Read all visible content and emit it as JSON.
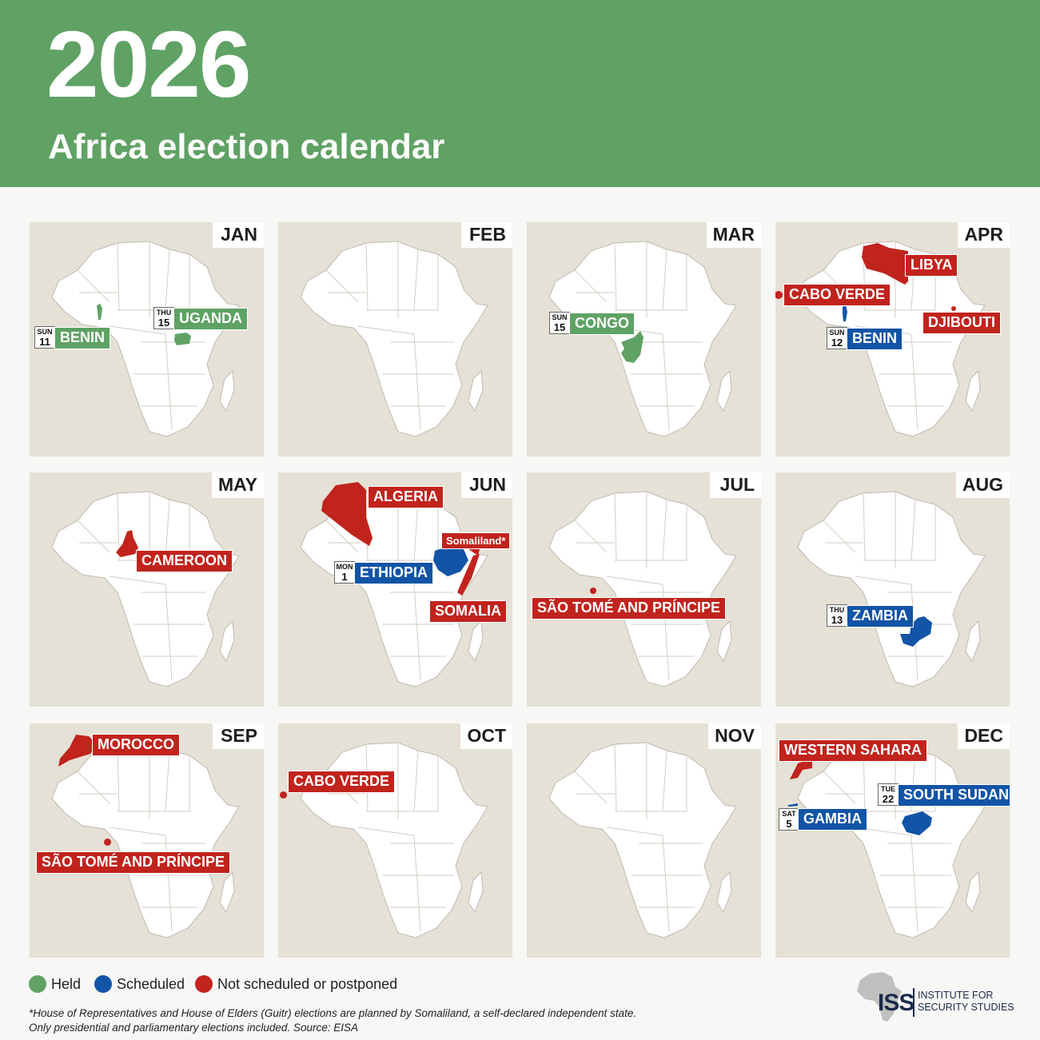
{
  "header": {
    "year": "2026",
    "subtitle": "Africa election calendar"
  },
  "colors": {
    "header_bg": "#5fa264",
    "held": "#5fa264",
    "scheduled": "#1254a6",
    "not_scheduled": "#c1231d",
    "map_bg": "#e5e1d6",
    "land": "#ffffff"
  },
  "months": [
    {
      "name": "JAN"
    },
    {
      "name": "FEB"
    },
    {
      "name": "MAR"
    },
    {
      "name": "APR"
    },
    {
      "name": "MAY"
    },
    {
      "name": "JUN"
    },
    {
      "name": "JUL"
    },
    {
      "name": "AUG"
    },
    {
      "name": "SEP"
    },
    {
      "name": "OCT"
    },
    {
      "name": "NOV"
    },
    {
      "name": "DEC"
    }
  ],
  "elections": {
    "jan_benin": {
      "country": "BENIN",
      "weekday": "SUN",
      "day": "11",
      "status": "held"
    },
    "jan_uganda": {
      "country": "UGANDA",
      "weekday": "THU",
      "day": "15",
      "status": "held"
    },
    "mar_congo": {
      "country": "CONGO",
      "weekday": "SUN",
      "day": "15",
      "status": "held"
    },
    "apr_libya": {
      "country": "LIBYA",
      "status": "not_scheduled"
    },
    "apr_cabo_verde": {
      "country": "CABO VERDE",
      "status": "not_scheduled"
    },
    "apr_djibouti": {
      "country": "DJIBOUTI",
      "status": "not_scheduled"
    },
    "apr_benin": {
      "country": "BENIN",
      "weekday": "SUN",
      "day": "12",
      "status": "scheduled"
    },
    "may_cameroon": {
      "country": "CAMEROON",
      "status": "not_scheduled"
    },
    "jun_algeria": {
      "country": "ALGERIA",
      "status": "not_scheduled"
    },
    "jun_somaliland": {
      "country": "Somaliland*",
      "status": "not_scheduled"
    },
    "jun_ethiopia": {
      "country": "ETHIOPIA",
      "weekday": "MON",
      "day": "1",
      "status": "scheduled"
    },
    "jun_somalia": {
      "country": "SOMALIA",
      "status": "not_scheduled"
    },
    "jul_sao_tome": {
      "country": "SÃO TOMÉ AND PRÍNCIPE",
      "status": "not_scheduled"
    },
    "aug_zambia": {
      "country": "ZAMBIA",
      "weekday": "THU",
      "day": "13",
      "status": "scheduled"
    },
    "sep_morocco": {
      "country": "MOROCCO",
      "status": "not_scheduled"
    },
    "sep_sao_tome": {
      "country": "SÃO TOMÉ AND PRÍNCIPE",
      "status": "not_scheduled"
    },
    "oct_cabo_verde": {
      "country": "CABO VERDE",
      "status": "not_scheduled"
    },
    "dec_western_sahara": {
      "country": "WESTERN SAHARA",
      "status": "not_scheduled"
    },
    "dec_south_sudan": {
      "country": "SOUTH SUDAN",
      "weekday": "TUE",
      "day": "22",
      "status": "scheduled"
    },
    "dec_gambia": {
      "country": "GAMBIA",
      "weekday": "SAT",
      "day": "5",
      "status": "scheduled"
    }
  },
  "legend": {
    "held": "Held",
    "scheduled": "Scheduled",
    "not_scheduled": "Not scheduled or postponed"
  },
  "footnote": {
    "line1": "*House of Representatives and House of Elders (Guitr) elections are planned by Somaliland, a self-declared independent state.",
    "line2": "Only presidential and parliamentary elections included. Source: EISA"
  },
  "logo": {
    "abbr": "ISS",
    "line1": "INSTITUTE FOR",
    "line2": "SECURITY STUDIES"
  }
}
